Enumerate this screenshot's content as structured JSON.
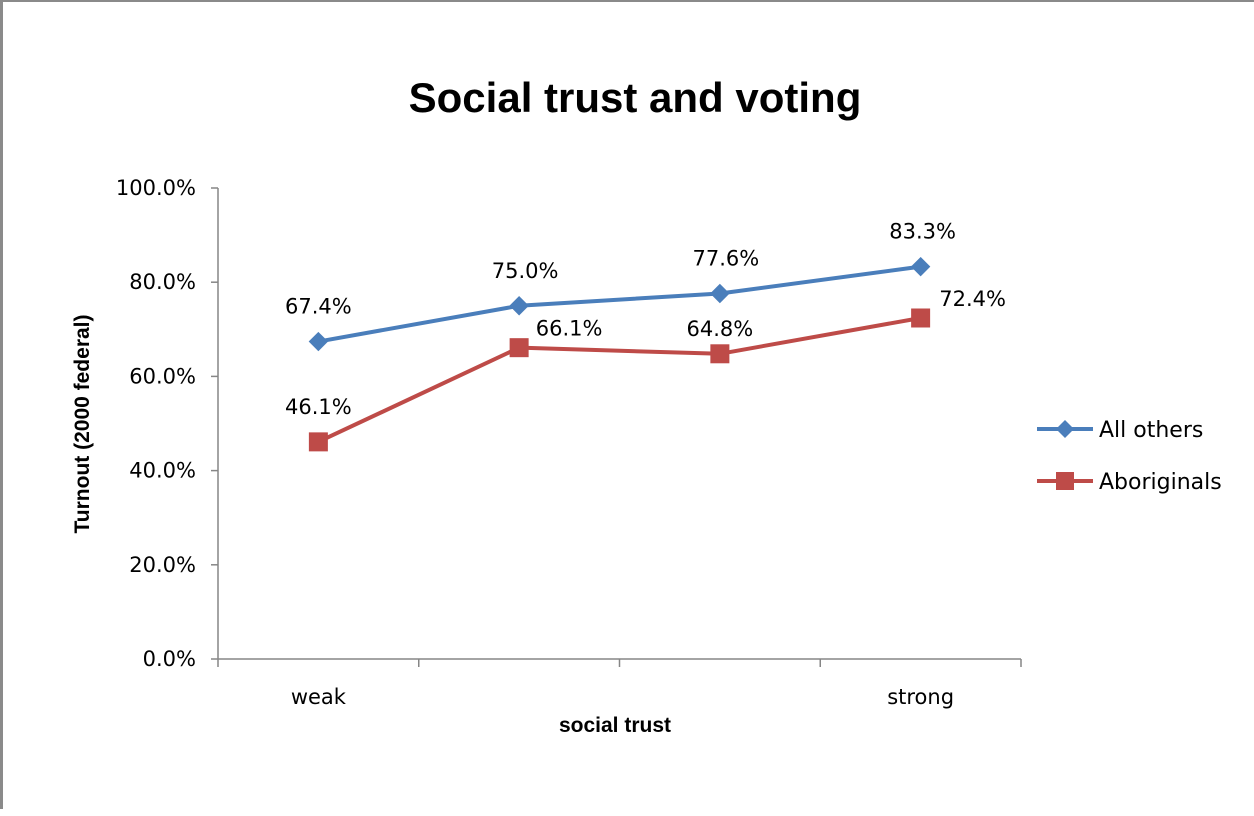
{
  "chart_data": {
    "type": "line",
    "title": "Social trust and voting",
    "xlabel": "social trust",
    "ylabel": "Turnout (2000 federal)",
    "categories": [
      "weak",
      "",
      "",
      "strong"
    ],
    "ylim": [
      0,
      100
    ],
    "yticks": [
      "0.0%",
      "20.0%",
      "40.0%",
      "60.0%",
      "80.0%",
      "100.0%"
    ],
    "grid": false,
    "legend_position": "right",
    "series": [
      {
        "name": "All others",
        "values": [
          67.4,
          75.0,
          77.6,
          83.3
        ],
        "labels": [
          "67.4%",
          "75.0%",
          "77.6%",
          "83.3%"
        ],
        "color": "#4a7ebb",
        "marker": "diamond"
      },
      {
        "name": "Aboriginals",
        "values": [
          46.1,
          66.1,
          64.8,
          72.4
        ],
        "labels": [
          "46.1%",
          "66.1%",
          "64.8%",
          "72.4%"
        ],
        "color": "#be4b48",
        "marker": "square"
      }
    ]
  }
}
